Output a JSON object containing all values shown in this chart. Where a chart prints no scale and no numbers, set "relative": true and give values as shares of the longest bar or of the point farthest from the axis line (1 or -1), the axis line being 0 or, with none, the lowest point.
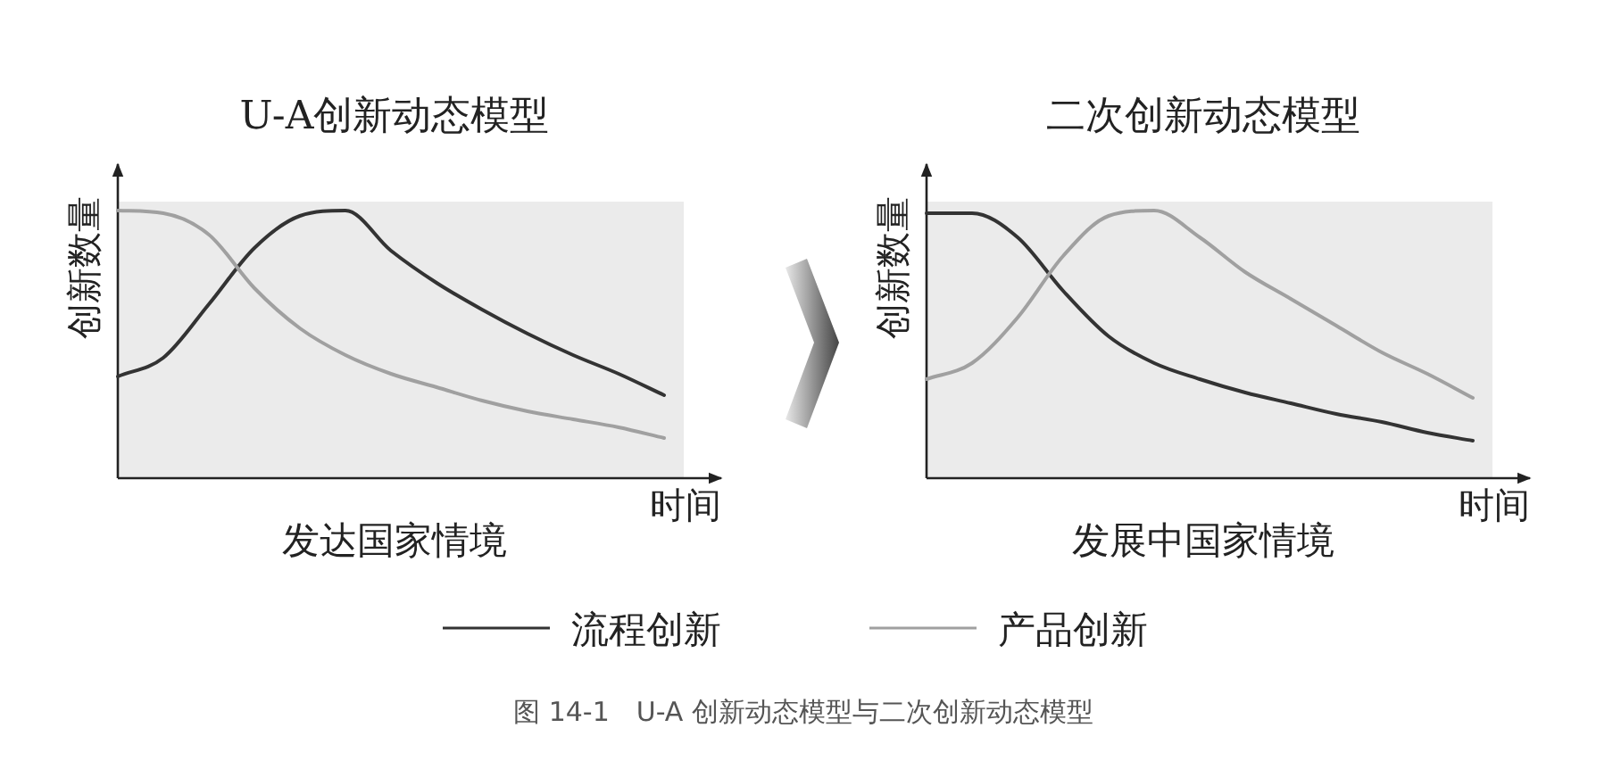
{
  "chart_data": [
    {
      "type": "line",
      "relative": true,
      "title": "U-A创新动态模型",
      "xlabel": "时间",
      "ylabel": "创新数量",
      "legend": "bottom",
      "annotations": [
        "发达国家情境"
      ],
      "categories": [
        null,
        null,
        null,
        null,
        null,
        null,
        null,
        null,
        null,
        null,
        null,
        null,
        null
      ],
      "series": [
        {
          "name": "流程创新",
          "color": "#333333",
          "values": [
            0.38,
            0.45,
            0.65,
            0.86,
            0.98,
            1,
            0.85,
            0.73,
            0.63,
            0.54,
            0.46,
            0.39,
            0.31
          ]
        },
        {
          "name": "产品创新",
          "color": "#a0a0a0",
          "values": [
            1,
            0.99,
            0.91,
            0.71,
            0.56,
            0.46,
            0.39,
            0.34,
            0.29,
            0.25,
            0.22,
            0.19,
            0.15
          ]
        }
      ]
    },
    {
      "type": "line",
      "relative": true,
      "title": "二次创新动态模型",
      "xlabel": "时间",
      "ylabel": "创新数量",
      "annotations": [
        "发展中国家情境",
        "图 14-1　U-A 创新动态模型与二次创新动态模型"
      ],
      "categories": [
        null,
        null,
        null,
        null,
        null,
        null,
        null,
        null,
        null,
        null,
        null,
        null,
        null
      ],
      "series": [
        {
          "color": "#333333",
          "values": [
            0.99,
            0.99,
            0.9,
            0.7,
            0.53,
            0.43,
            0.37,
            0.32,
            0.28,
            0.24,
            0.21,
            0.17,
            0.14
          ]
        },
        {
          "color": "#a0a0a0",
          "values": [
            0.37,
            0.43,
            0.6,
            0.83,
            0.98,
            1,
            0.9,
            0.77,
            0.67,
            0.57,
            0.47,
            0.39,
            0.3
          ]
        }
      ]
    }
  ]
}
